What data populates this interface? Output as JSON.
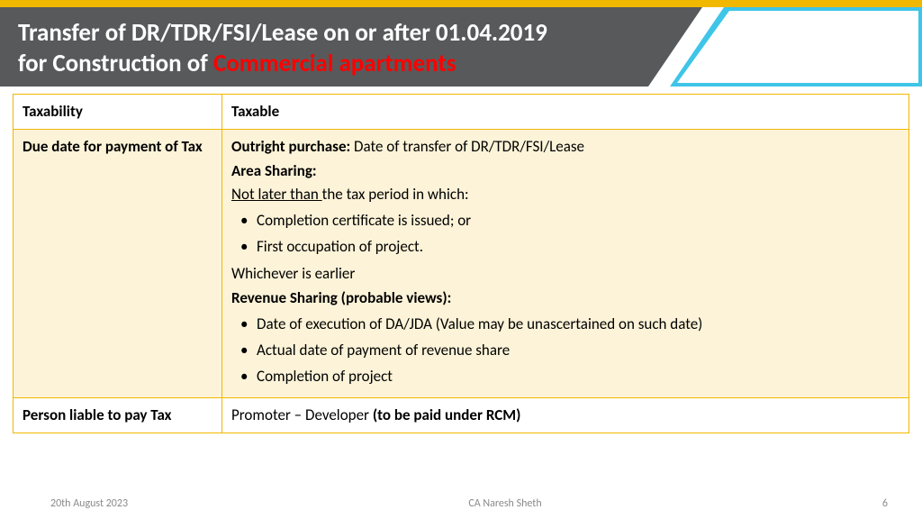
{
  "header": {
    "title_line1": "Transfer of DR/TDR/FSI/Lease on or after 01.04.2019",
    "title_line2_white": "for Construction of ",
    "title_line2_red": "Commercial apartments"
  },
  "table": {
    "header": {
      "left": "Taxability",
      "right": "Taxable"
    },
    "row1": {
      "left": "Due date for payment of Tax",
      "outright_label": "Outright purchase:",
      "outright_text": " Date of transfer of DR/TDR/FSI/Lease",
      "area_sharing_label": "Area Sharing:",
      "not_later": "Not later than ",
      "not_later_tail": "the tax period in which:",
      "bullets_a": [
        "Completion certificate is issued; or",
        "First occupation of project."
      ],
      "whichever": "Whichever is earlier",
      "revenue_label": "Revenue Sharing (probable views):",
      "bullets_b": [
        "Date of execution of DA/JDA (Value may be unascertained on such date)",
        "Actual date of payment of revenue share",
        "Completion of project"
      ]
    },
    "row2": {
      "left": "Person liable to pay Tax",
      "right_plain": "Promoter – Developer ",
      "right_bold": "(to be paid under RCM)"
    }
  },
  "footer": {
    "date": "20th August 2023",
    "author": "CA Naresh Sheth",
    "page": "6"
  },
  "colors": {
    "accent_yellow": "#f2b800",
    "accent_cyan": "#3fc5e8",
    "header_grey": "#58595b",
    "title_red": "#ff0000",
    "body_bg": "#fcf3d8",
    "footer_grey": "#8a8a8a"
  }
}
